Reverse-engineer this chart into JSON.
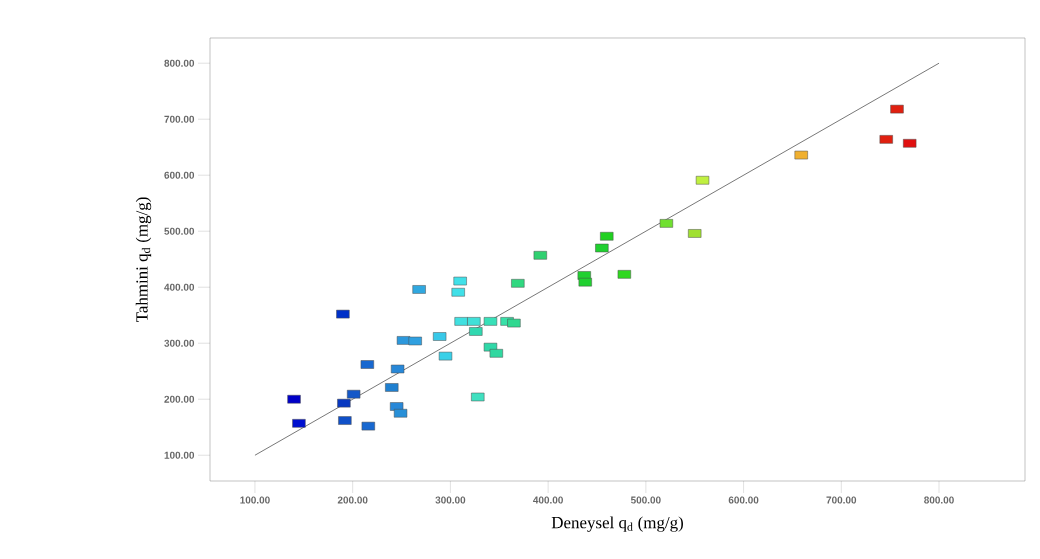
{
  "chart_data": {
    "type": "scatter",
    "xlabel": "Deneysel q$_{d}$ (mg/g)",
    "ylabel": "Tahmini q$_{d}$ (mg/g)",
    "xlim": [
      54,
      888
    ],
    "ylim": [
      54,
      845
    ],
    "xticks": [
      {
        "value": 100,
        "label": "100.00"
      },
      {
        "value": 200,
        "label": "200.00"
      },
      {
        "value": 300,
        "label": "300.00"
      },
      {
        "value": 400,
        "label": "400.00"
      },
      {
        "value": 500,
        "label": "500.00"
      },
      {
        "value": 600,
        "label": "600.00"
      },
      {
        "value": 700,
        "label": "700.00"
      },
      {
        "value": 800,
        "label": "800.00"
      }
    ],
    "yticks": [
      {
        "value": 100,
        "label": "100.00"
      },
      {
        "value": 200,
        "label": "200.00"
      },
      {
        "value": 300,
        "label": "300.00"
      },
      {
        "value": 400,
        "label": "400.00"
      },
      {
        "value": 500,
        "label": "500.00"
      },
      {
        "value": 600,
        "label": "600.00"
      },
      {
        "value": 700,
        "label": "700.00"
      },
      {
        "value": 800,
        "label": "800.00"
      }
    ],
    "grid": false,
    "series": [
      {
        "marker": "square",
        "x": [
          140,
          145,
          190,
          191,
          192,
          201,
          215,
          216,
          240,
          245,
          246,
          249,
          252,
          264,
          268,
          289,
          295,
          308,
          310,
          311,
          324,
          326,
          328,
          341,
          341,
          347,
          358,
          365,
          369,
          392,
          437,
          438,
          455,
          460,
          478,
          521,
          550,
          558,
          659,
          746,
          757,
          770
        ],
        "values": [
          200,
          157,
          352,
          193,
          162,
          209,
          262,
          152,
          221,
          187,
          254,
          175,
          305,
          304,
          396,
          312,
          277,
          391,
          411,
          339,
          339,
          321,
          204,
          339,
          293,
          282,
          339,
          336,
          407,
          457,
          421,
          409,
          470,
          491,
          423,
          514,
          496,
          591,
          636,
          664,
          718,
          657
        ],
        "colors": [
          "#0000c8",
          "#0010d0",
          "#0030c8",
          "#0838c0",
          "#1050c8",
          "#1458c8",
          "#1868d0",
          "#1868d0",
          "#2080d0",
          "#2888d8",
          "#2888d8",
          "#2890d8",
          "#2c98dc",
          "#30a0e0",
          "#30a8e0",
          "#38c8e8",
          "#38d0e8",
          "#40e0e8",
          "#40e0e8",
          "#40e0e0",
          "#40e0d8",
          "#30d8b0",
          "#40e0c0",
          "#38e0b8",
          "#30d8a8",
          "#30d8a0",
          "#38e0a8",
          "#30d890",
          "#30d880",
          "#30d070",
          "#20d030",
          "#20d030",
          "#20d030",
          "#20d020",
          "#30d820",
          "#70e030",
          "#a0e030",
          "#c0f040",
          "#f0b030",
          "#e02010",
          "#e02010",
          "#e01010"
        ]
      },
      {
        "type": "line",
        "x": [
          100,
          800
        ],
        "values": [
          100,
          800
        ],
        "color": "#555555",
        "marker": "none"
      }
    ]
  }
}
